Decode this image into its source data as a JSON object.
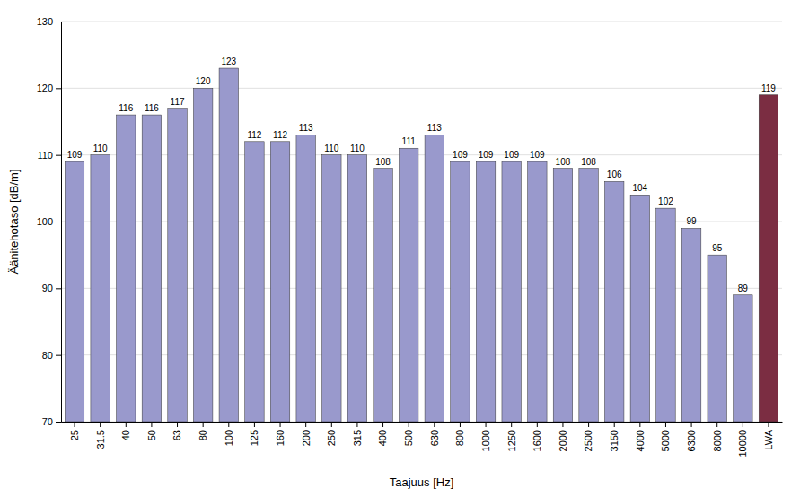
{
  "chart_data": {
    "type": "bar",
    "categories": [
      "25",
      "31.5",
      "40",
      "50",
      "63",
      "80",
      "100",
      "125",
      "160",
      "200",
      "250",
      "315",
      "400",
      "500",
      "630",
      "800",
      "1000",
      "1250",
      "1600",
      "2000",
      "2500",
      "3150",
      "4000",
      "5000",
      "6300",
      "8000",
      "10000",
      "LWA"
    ],
    "values": [
      109,
      110,
      116,
      116,
      117,
      120,
      123,
      112,
      112,
      113,
      110,
      110,
      108,
      111,
      113,
      109,
      109,
      109,
      109,
      108,
      108,
      106,
      104,
      102,
      99,
      95,
      89,
      119
    ],
    "colors": [
      "#9999cc",
      "#9999cc",
      "#9999cc",
      "#9999cc",
      "#9999cc",
      "#9999cc",
      "#9999cc",
      "#9999cc",
      "#9999cc",
      "#9999cc",
      "#9999cc",
      "#9999cc",
      "#9999cc",
      "#9999cc",
      "#9999cc",
      "#9999cc",
      "#9999cc",
      "#9999cc",
      "#9999cc",
      "#9999cc",
      "#9999cc",
      "#9999cc",
      "#9999cc",
      "#9999cc",
      "#9999cc",
      "#9999cc",
      "#9999cc",
      "#7b2d42"
    ],
    "ylabel": "Äänitehotaso [dB/m]",
    "xlabel": "Taajuus [Hz]",
    "ylim": [
      70,
      130
    ],
    "yticks": [
      70,
      80,
      90,
      100,
      110,
      120,
      130
    ],
    "grid": true,
    "data_labels": true
  }
}
